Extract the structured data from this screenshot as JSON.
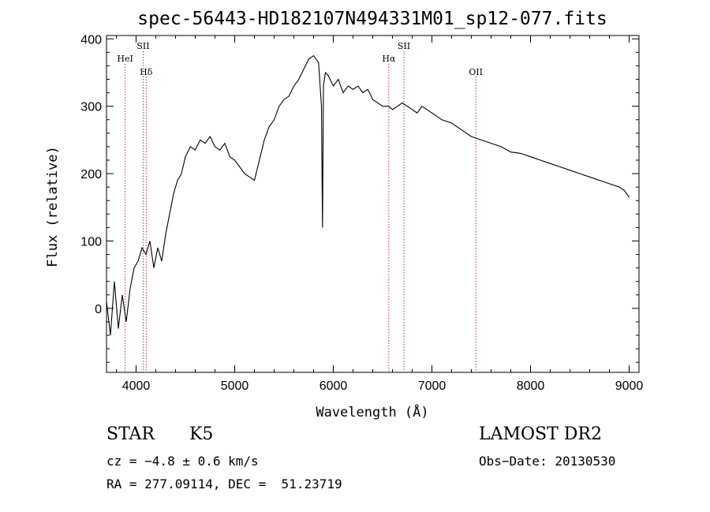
{
  "chart_data": {
    "type": "line",
    "title": "spec-56443-HD182107N494331M01_sp12-077.fits",
    "xlabel": "Wavelength (Å)",
    "ylabel": "Flux (relative)",
    "xlim": [
      3700,
      9100
    ],
    "ylim": [
      -95,
      405
    ],
    "x_ticks": [
      4000,
      5000,
      6000,
      7000,
      8000,
      9000
    ],
    "x_tick_labels": [
      "4000",
      "5000",
      "6000",
      "7000",
      "8000",
      "9000"
    ],
    "y_ticks": [
      0,
      100,
      200,
      300,
      400
    ],
    "y_tick_labels": [
      "0",
      "100",
      "200",
      "300",
      "400"
    ],
    "grid": false,
    "series": [
      {
        "x": [
          3700,
          3740,
          3780,
          3820,
          3860,
          3900,
          3940,
          3980,
          4020,
          4060,
          4100,
          4140,
          4180,
          4220,
          4260,
          4300,
          4340,
          4380,
          4420,
          4460,
          4500,
          4550,
          4600,
          4650,
          4700,
          4750,
          4800,
          4850,
          4900,
          4950,
          5000,
          5050,
          5100,
          5150,
          5200,
          5250,
          5300,
          5350,
          5400,
          5450,
          5500,
          5550,
          5600,
          5650,
          5700,
          5750,
          5800,
          5850,
          5880,
          5890,
          5900,
          5920,
          5950,
          6000,
          6050,
          6100,
          6150,
          6200,
          6250,
          6300,
          6350,
          6400,
          6450,
          6500,
          6560,
          6600,
          6650,
          6700,
          6750,
          6800,
          6850,
          6900,
          6950,
          7000,
          7100,
          7200,
          7300,
          7400,
          7500,
          7600,
          7700,
          7800,
          7900,
          8000,
          8100,
          8200,
          8300,
          8400,
          8500,
          8600,
          8700,
          8800,
          8900,
          8950,
          9000
        ],
        "y": [
          10,
          -40,
          40,
          -30,
          20,
          -20,
          30,
          60,
          70,
          90,
          80,
          100,
          60,
          90,
          70,
          110,
          140,
          170,
          190,
          200,
          225,
          240,
          235,
          250,
          245,
          255,
          240,
          235,
          245,
          225,
          220,
          210,
          200,
          195,
          190,
          220,
          250,
          270,
          280,
          300,
          310,
          315,
          330,
          340,
          355,
          370,
          375,
          365,
          300,
          120,
          330,
          350,
          345,
          330,
          340,
          320,
          330,
          325,
          330,
          320,
          325,
          310,
          305,
          300,
          300,
          295,
          300,
          305,
          300,
          295,
          290,
          300,
          295,
          290,
          280,
          275,
          265,
          255,
          250,
          245,
          240,
          232,
          230,
          225,
          220,
          215,
          210,
          205,
          200,
          195,
          190,
          185,
          180,
          175,
          165
        ]
      }
    ],
    "line_markers": [
      {
        "label": "HeI",
        "x": 3889
      },
      {
        "label": "SII",
        "x": 4072
      },
      {
        "label": "Hδ",
        "x": 4102
      },
      {
        "label": "Hα",
        "x": 6563
      },
      {
        "label": "SII",
        "x": 6716
      },
      {
        "label": "OII",
        "x": 7445
      }
    ]
  },
  "info": {
    "class": "STAR",
    "subclass": "K5",
    "survey": "LAMOST DR2",
    "cz": "cz = −4.8 ± 0.6 km/s",
    "obs_date": "Obs−Date: 20130530",
    "radec": "RA = 277.09114, DEC =  51.23719"
  },
  "colors": {
    "line": "#000000",
    "marker": "#c0392b",
    "axis": "#000000",
    "background": "#ffffff"
  }
}
